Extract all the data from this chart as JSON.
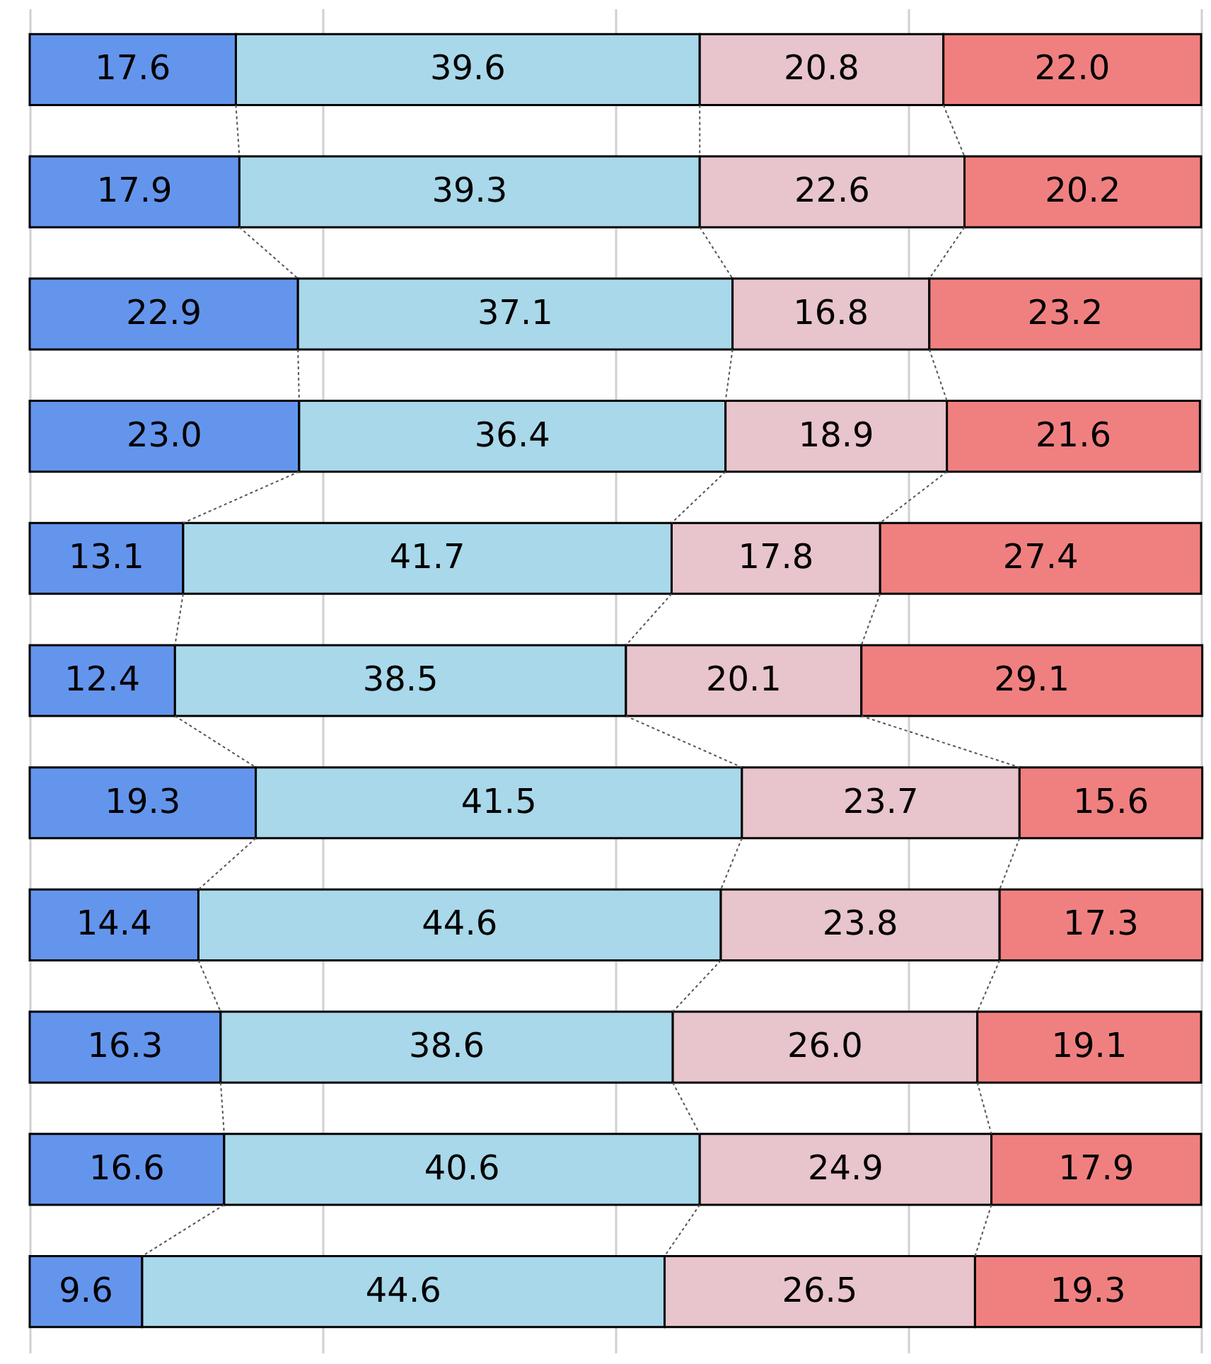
{
  "chart_data": {
    "type": "bar",
    "orientation": "horizontal",
    "stacked": true,
    "categories": [
      null,
      null,
      null,
      null,
      null,
      null,
      null,
      null,
      null,
      null,
      null
    ],
    "series": [
      {
        "color": "#6495ed",
        "values": [
          17.6,
          17.9,
          22.9,
          23.0,
          13.1,
          12.4,
          19.3,
          14.4,
          16.3,
          16.6,
          9.6
        ],
        "value_labels": [
          "17.6",
          "17.9",
          "22.9",
          "23.0",
          "13.1",
          "12.4",
          "19.3",
          "14.4",
          "16.3",
          "16.6",
          "9.6"
        ]
      },
      {
        "color": "#a8d8ea",
        "values": [
          39.6,
          39.3,
          37.1,
          36.4,
          41.7,
          38.5,
          41.5,
          44.6,
          38.6,
          40.6,
          44.6
        ],
        "value_labels": [
          "39.6",
          "39.3",
          "37.1",
          "36.4",
          "41.7",
          "38.5",
          "41.5",
          "44.6",
          "38.6",
          "40.6",
          "44.6"
        ]
      },
      {
        "color": "#e8c4cc",
        "values": [
          20.8,
          22.6,
          16.8,
          18.9,
          17.8,
          20.1,
          23.7,
          23.8,
          26.0,
          24.9,
          26.5
        ],
        "value_labels": [
          "20.8",
          "22.6",
          "16.8",
          "18.9",
          "17.8",
          "20.1",
          "23.7",
          "23.8",
          "26.0",
          "24.9",
          "26.5"
        ]
      },
      {
        "color": "#f08080",
        "values": [
          22.0,
          20.2,
          23.2,
          21.6,
          27.4,
          29.1,
          15.6,
          17.3,
          19.1,
          17.9,
          19.3
        ],
        "value_labels": [
          "22.0",
          "20.2",
          "23.2",
          "21.6",
          "27.4",
          "29.1",
          "15.6",
          "17.3",
          "19.1",
          "17.9",
          "19.3"
        ]
      }
    ],
    "xlim": [
      0,
      100
    ],
    "xticks": [
      {
        "value": 0,
        "label": null
      },
      {
        "value": 25,
        "label": null
      },
      {
        "value": 50,
        "label": null
      },
      {
        "value": 75,
        "label": null
      },
      {
        "value": 100,
        "label": null
      }
    ],
    "grid": "x"
  }
}
